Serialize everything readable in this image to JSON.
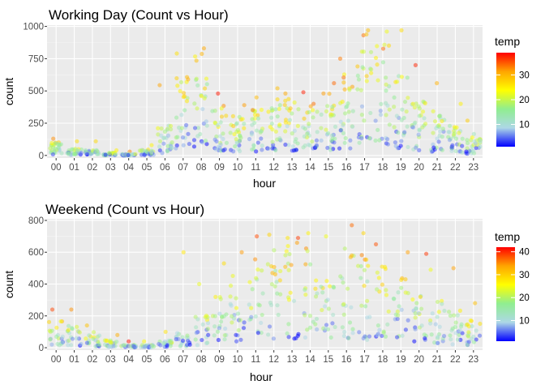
{
  "chart_data": [
    {
      "type": "scatter",
      "title": "Working Day (Count vs Hour)",
      "xlabel": "hour",
      "ylabel": "count",
      "categories": [
        "00",
        "01",
        "02",
        "03",
        "04",
        "05",
        "06",
        "07",
        "08",
        "09",
        "10",
        "11",
        "12",
        "13",
        "14",
        "15",
        "16",
        "17",
        "18",
        "19",
        "20",
        "21",
        "22",
        "23"
      ],
      "ylim": [
        -20,
        1010
      ],
      "yticks": [
        0,
        250,
        500,
        750,
        1000
      ],
      "grid": true,
      "panel_background": "#ebebeb",
      "legend": {
        "title": "temp",
        "placement": "right",
        "ticks": [
          10,
          20,
          30
        ],
        "range": [
          1,
          39
        ]
      },
      "colorscale": [
        "#0000ff",
        "#add8e6",
        "#90ee90",
        "#ffff00",
        "#ffa500",
        "#ff0000"
      ],
      "hourly_mean_count": [
        55,
        33,
        22,
        11,
        6,
        25,
        125,
        355,
        460,
        225,
        170,
        205,
        250,
        245,
        225,
        260,
        360,
        510,
        480,
        355,
        255,
        190,
        140,
        90
      ],
      "hourly_max_count": [
        130,
        110,
        110,
        40,
        30,
        80,
        545,
        790,
        830,
        480,
        390,
        450,
        520,
        480,
        490,
        560,
        750,
        970,
        960,
        970,
        700,
        560,
        400,
        270
      ]
    },
    {
      "type": "scatter",
      "title": "Weekend (Count vs Hour)",
      "xlabel": "hour",
      "ylabel": "count",
      "categories": [
        "00",
        "01",
        "02",
        "03",
        "04",
        "05",
        "06",
        "07",
        "08",
        "09",
        "10",
        "11",
        "12",
        "13",
        "14",
        "15",
        "16",
        "17",
        "18",
        "19",
        "20",
        "21",
        "22",
        "23"
      ],
      "ylim": [
        -15,
        810
      ],
      "yticks": [
        0,
        200,
        400,
        600,
        800
      ],
      "grid": true,
      "panel_background": "#ebebeb",
      "legend": {
        "title": "temp",
        "placement": "right",
        "ticks": [
          10,
          20,
          30,
          40
        ],
        "range": [
          1,
          42
        ]
      },
      "colorscale": [
        "#0000ff",
        "#add8e6",
        "#90ee90",
        "#ffff00",
        "#ffa500",
        "#ff0000"
      ],
      "hourly_mean_count": [
        95,
        75,
        55,
        25,
        10,
        10,
        25,
        55,
        110,
        180,
        250,
        310,
        360,
        380,
        375,
        370,
        360,
        330,
        290,
        240,
        190,
        160,
        130,
        100
      ],
      "hourly_max_count": [
        240,
        240,
        140,
        80,
        40,
        40,
        100,
        600,
        400,
        530,
        600,
        700,
        710,
        690,
        720,
        700,
        770,
        720,
        650,
        600,
        590,
        490,
        500,
        280
      ]
    }
  ]
}
